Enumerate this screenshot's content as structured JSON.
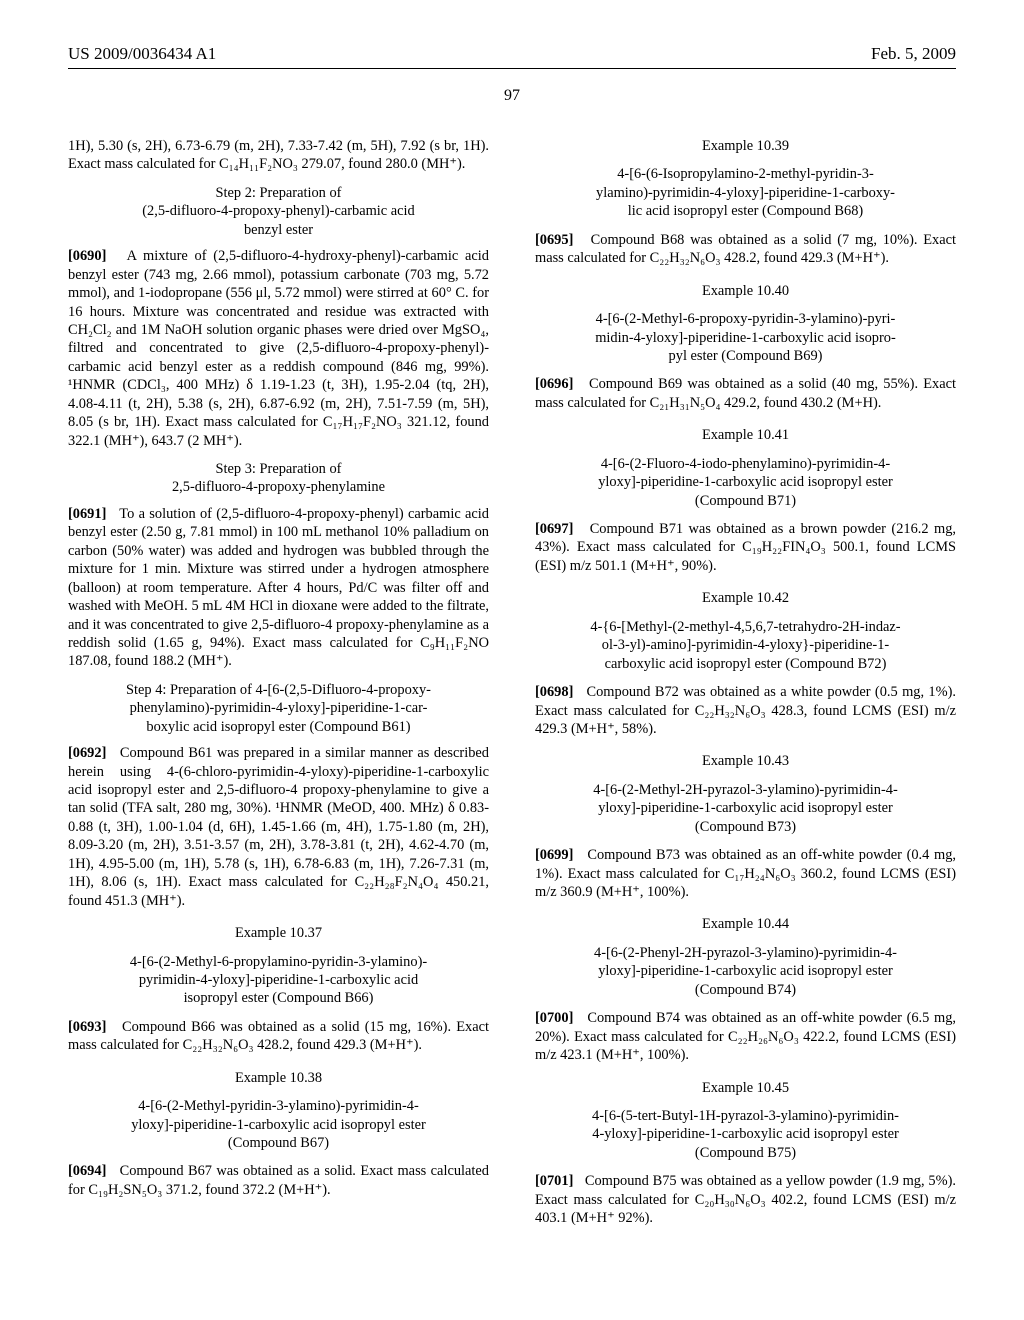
{
  "header": {
    "pubnum": "US 2009/0036434 A1",
    "date": "Feb. 5, 2009",
    "pagenum": "97"
  },
  "col1": {
    "p_cont": "1H), 5.30 (s, 2H), 6.73-6.79 (m, 2H), 7.33-7.42 (m, 5H), 7.92 (s br, 1H). Exact mass calculated for C₁₄H₁₁F₂NO₃ 279.07, found 280.0 (MH⁺).",
    "step2_title_l1": "Step 2: Preparation of",
    "step2_title_l2": "(2,5-difluoro-4-propoxy-phenyl)-carbamic acid",
    "step2_title_l3": "benzyl ester",
    "p0690_num": "[0690]",
    "p0690": "A mixture of (2,5-difluoro-4-hydroxy-phenyl)-carbamic acid benzyl ester (743 mg, 2.66 mmol), potassium carbonate (703 mg, 5.72 mmol), and 1-iodopropane (556 μl, 5.72 mmol) were stirred at 60° C. for 16 hours. Mixture was concentrated and residue was extracted with CH₂Cl₂ and 1M NaOH solution organic phases were dried over MgSO₄, filtred and concentrated to give (2,5-difluoro-4-propoxy-phenyl)-carbamic acid benzyl ester as a reddish compound (846 mg, 99%). ¹HNMR (CDCl₃, 400 MHz) δ 1.19-1.23 (t, 3H), 1.95-2.04 (tq, 2H), 4.08-4.11 (t, 2H), 5.38 (s, 2H), 6.87-6.92 (m, 2H), 7.51-7.59 (m, 5H), 8.05 (s br, 1H). Exact mass calculated for C₁₇H₁₇F₂NO₃ 321.12, found 322.1 (MH⁺), 643.7 (2 MH⁺).",
    "step3_title_l1": "Step 3: Preparation of",
    "step3_title_l2": "2,5-difluoro-4-propoxy-phenylamine",
    "p0691_num": "[0691]",
    "p0691": "To a solution of (2,5-difluoro-4-propoxy-phenyl) carbamic acid benzyl ester (2.50 g, 7.81 mmol) in 100 mL methanol 10% palladium on carbon (50% water) was added and hydrogen was bubbled through the mixture for 1 min. Mixture was stirred under a hydrogen atmosphere (balloon) at room temperature. After 4 hours, Pd/C was filter off and washed with MeOH. 5 mL 4M HCl in dioxane were added to the filtrate, and it was concentrated to give 2,5-difluoro-4 propoxy-phenylamine as a reddish solid (1.65 g, 94%). Exact mass calculated for C₉H₁₁F₂NO 187.08, found 188.2 (MH⁺).",
    "step4_title_l1": "Step 4: Preparation of 4-[6-(2,5-Difluoro-4-propoxy-",
    "step4_title_l2": "phenylamino)-pyrimidin-4-yloxy]-piperidine-1-car-",
    "step4_title_l3": "boxylic acid isopropyl ester (Compound B61)",
    "p0692_num": "[0692]",
    "p0692": "Compound B61 was prepared in a similar manner as described herein using 4-(6-chloro-pyrimidin-4-yloxy)-piperidine-1-carboxylic acid isopropyl ester and 2,5-difluoro-4 propoxy-phenylamine to give a tan solid (TFA salt, 280 mg, 30%). ¹HNMR (MeOD, 400. MHz) δ 0.83-0.88 (t, 3H), 1.00-1.04 (d, 6H), 1.45-1.66 (m, 4H), 1.75-1.80 (m, 2H), 8.09-3.20 (m, 2H), 3.51-3.57 (m, 2H), 3.78-3.81 (t, 2H), 4.62-4.70 (m, 1H), 4.95-5.00 (m, 1H), 5.78 (s, 1H), 6.78-6.83 (m, 1H), 7.26-7.31 (m, 1H), 8.06 (s, 1H). Exact mass calculated for C₂₂H₂₈F₂N₄O₄ 450.21, found 451.3 (MH⁺).",
    "ex1037": "Example 10.37",
    "ex1037_t1": "4-[6-(2-Methyl-6-propylamino-pyridin-3-ylamino)-",
    "ex1037_t2": "pyrimidin-4-yloxy]-piperidine-1-carboxylic acid",
    "ex1037_t3": "isopropyl ester (Compound B66)",
    "p0693_num": "[0693]",
    "p0693": "Compound B66 was obtained as a solid (15 mg, 16%). Exact mass calculated for C₂₂H₃₂N₆O₃ 428.2, found 429.3 (M+H⁺).",
    "ex1038": "Example 10.38",
    "ex1038_t1": "4-[6-(2-Methyl-pyridin-3-ylamino)-pyrimidin-4-",
    "ex1038_t2": "yloxy]-piperidine-1-carboxylic acid isopropyl ester",
    "ex1038_t3": "(Compound B67)",
    "p0694_num": "[0694]",
    "p0694": "Compound B67 was obtained as a solid. Exact mass calculated for C₁₉H₂SN₅O₃ 371.2, found 372.2 (M+H⁺)."
  },
  "col2": {
    "ex1039": "Example 10.39",
    "ex1039_t1": "4-[6-(6-Isopropylamino-2-methyl-pyridin-3-",
    "ex1039_t2": "ylamino)-pyrimidin-4-yloxy]-piperidine-1-carboxy-",
    "ex1039_t3": "lic acid isopropyl ester (Compound B68)",
    "p0695_num": "[0695]",
    "p0695": "Compound B68 was obtained as a solid (7 mg, 10%). Exact mass calculated for C₂₂H₃₂N₆O₃ 428.2, found 429.3 (M+H⁺).",
    "ex1040": "Example 10.40",
    "ex1040_t1": "4-[6-(2-Methyl-6-propoxy-pyridin-3-ylamino)-pyri-",
    "ex1040_t2": "midin-4-yloxy]-piperidine-1-carboxylic acid isopro-",
    "ex1040_t3": "pyl ester (Compound B69)",
    "p0696_num": "[0696]",
    "p0696": "Compound B69 was obtained as a solid (40 mg, 55%). Exact mass calculated for C₂₁H₃₁N₅O₄ 429.2, found 430.2 (M+H).",
    "ex1041": "Example 10.41",
    "ex1041_t1": "4-[6-(2-Fluoro-4-iodo-phenylamino)-pyrimidin-4-",
    "ex1041_t2": "yloxy]-piperidine-1-carboxylic acid isopropyl ester",
    "ex1041_t3": "(Compound B71)",
    "p0697_num": "[0697]",
    "p0697": "Compound B71 was obtained as a brown powder (216.2 mg, 43%). Exact mass calculated for C₁₉H₂₂FIN₄O₃ 500.1, found LCMS (ESI) m/z 501.1 (M+H⁺, 90%).",
    "ex1042": "Example 10.42",
    "ex1042_t1": "4-{6-[Methyl-(2-methyl-4,5,6,7-tetrahydro-2H-indaz-",
    "ex1042_t2": "ol-3-yl)-amino]-pyrimidin-4-yloxy}-piperidine-1-",
    "ex1042_t3": "carboxylic acid isopropyl ester (Compound B72)",
    "p0698_num": "[0698]",
    "p0698": "Compound B72 was obtained as a white powder (0.5 mg, 1%). Exact mass calculated for C₂₂H₃₂N₆O₃ 428.3, found LCMS (ESI) m/z 429.3 (M+H⁺, 58%).",
    "ex1043": "Example 10.43",
    "ex1043_t1": "4-[6-(2-Methyl-2H-pyrazol-3-ylamino)-pyrimidin-4-",
    "ex1043_t2": "yloxy]-piperidine-1-carboxylic acid isopropyl ester",
    "ex1043_t3": "(Compound B73)",
    "p0699_num": "[0699]",
    "p0699": "Compound B73 was obtained as an off-white powder (0.4 mg, 1%). Exact mass calculated for C₁₇H₂₄N₆O₃ 360.2, found LCMS (ESI) m/z 360.9 (M+H⁺, 100%).",
    "ex1044": "Example 10.44",
    "ex1044_t1": "4-[6-(2-Phenyl-2H-pyrazol-3-ylamino)-pyrimidin-4-",
    "ex1044_t2": "yloxy]-piperidine-1-carboxylic acid isopropyl ester",
    "ex1044_t3": "(Compound B74)",
    "p0700_num": "[0700]",
    "p0700": "Compound B74 was obtained as an off-white powder (6.5 mg, 20%). Exact mass calculated for C₂₂H₂₆N₆O₃ 422.2, found LCMS (ESI) m/z 423.1 (M+H⁺, 100%).",
    "ex1045": "Example 10.45",
    "ex1045_t1": "4-[6-(5-tert-Butyl-1H-pyrazol-3-ylamino)-pyrimidin-",
    "ex1045_t2": "4-yloxy]-piperidine-1-carboxylic acid isopropyl ester",
    "ex1045_t3": "(Compound B75)",
    "p0701_num": "[0701]",
    "p0701": "Compound B75 was obtained as a yellow powder (1.9 mg, 5%). Exact mass calculated for C₂₀H₃₀N₆O₃ 402.2, found LCMS (ESI) m/z 403.1 (M+H⁺ 92%)."
  }
}
